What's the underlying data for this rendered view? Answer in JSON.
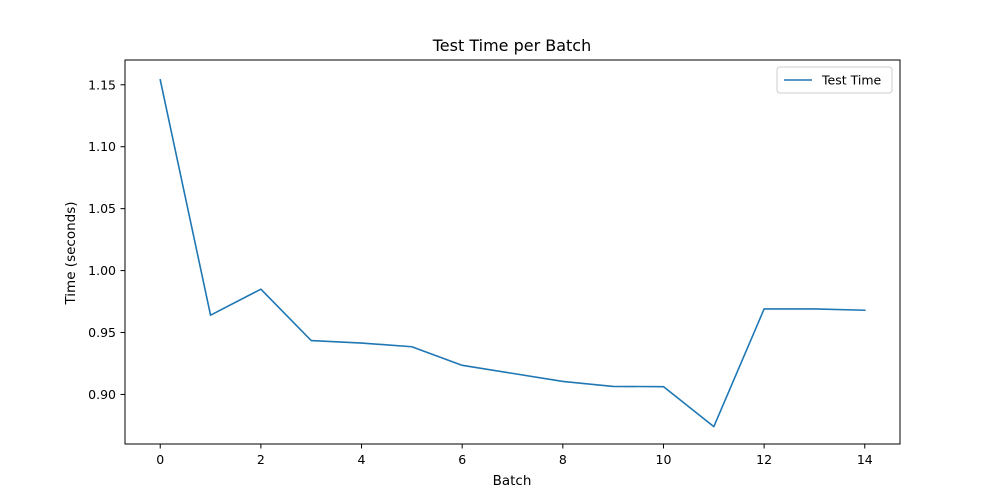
{
  "chart_data": {
    "type": "line",
    "title": "Test Time per Batch",
    "xlabel": "Batch",
    "ylabel": "Time (seconds)",
    "xlim": [
      -0.7,
      14.7
    ],
    "ylim": [
      0.86,
      1.17
    ],
    "xticks": [
      0,
      2,
      4,
      6,
      8,
      10,
      12,
      14
    ],
    "yticks": [
      0.9,
      0.95,
      1.0,
      1.05,
      1.1,
      1.15
    ],
    "ytick_labels": [
      "0.90",
      "0.95",
      "1.00",
      "1.05",
      "1.10",
      "1.15"
    ],
    "grid": false,
    "legend_position": "top-right",
    "series": [
      {
        "name": "Test Time",
        "color": "#1f77b4",
        "x": [
          0,
          1,
          2,
          3,
          4,
          5,
          6,
          7,
          8,
          9,
          10,
          11,
          12,
          13,
          14
        ],
        "y": [
          1.154,
          0.964,
          0.985,
          0.9435,
          0.9415,
          0.9385,
          0.9235,
          0.917,
          0.9105,
          0.9065,
          0.9063,
          0.874,
          0.969,
          0.969,
          0.968
        ]
      }
    ]
  }
}
